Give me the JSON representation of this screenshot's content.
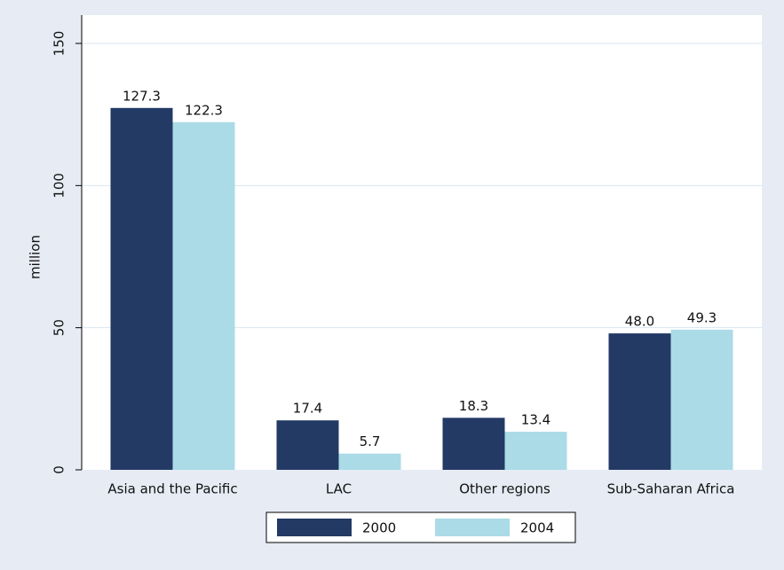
{
  "chart_data": {
    "type": "bar",
    "ylabel": "million",
    "categories": [
      "Asia and the Pacific",
      "LAC",
      "Other regions",
      "Sub-Saharan Africa"
    ],
    "series": [
      {
        "name": "2000",
        "color": "#233a65",
        "values": [
          127.3,
          17.4,
          18.3,
          48.0
        ],
        "value_labels": [
          "127.3",
          "17.4",
          "18.3",
          "48.0"
        ]
      },
      {
        "name": "2004",
        "color": "#aadbe6",
        "values": [
          122.3,
          5.7,
          13.4,
          49.3
        ],
        "value_labels": [
          "122.3",
          "5.7",
          "13.4",
          "49.3"
        ]
      }
    ],
    "ylim": [
      0,
      150
    ],
    "yticks": [
      0,
      50,
      100,
      150
    ],
    "grid": true,
    "legend": "bottom"
  }
}
